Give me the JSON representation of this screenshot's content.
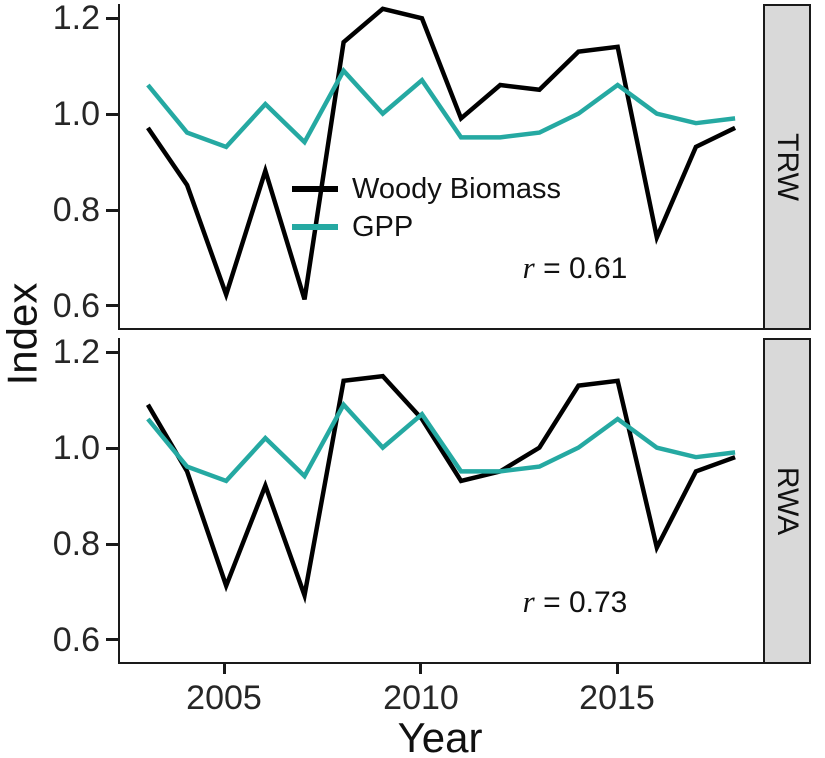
{
  "chart_data": {
    "type": "line",
    "xlabel": "Year",
    "ylabel": "Index",
    "x": [
      2003,
      2004,
      2005,
      2006,
      2007,
      2008,
      2009,
      2010,
      2011,
      2012,
      2013,
      2014,
      2015,
      2016,
      2017,
      2018
    ],
    "x_ticks": [
      2005,
      2010,
      2015
    ],
    "x_tick_labels": [
      "2005",
      "2010",
      "2015"
    ],
    "y_ticks": [
      1.2,
      1.0,
      0.8,
      0.6
    ],
    "y_tick_labels": [
      "1.2",
      "1.0",
      "0.8",
      "0.6"
    ],
    "ylim": [
      0.55,
      1.23
    ],
    "grid": "off",
    "legend_position": "inside-top-panel",
    "facet_strip_bg": "#d9d9d9",
    "legend": {
      "entries": [
        {
          "label": "Woody Biomass",
          "color": "#000000"
        },
        {
          "label": "GPP",
          "color": "#25a9a2"
        }
      ]
    },
    "panels": [
      {
        "facet_label": "TRW",
        "annotation": {
          "symbol": "r",
          "rest": " = 0.61"
        },
        "series": [
          {
            "name": "Woody Biomass",
            "color": "#000000",
            "values": [
              0.97,
              0.85,
              0.62,
              0.88,
              0.61,
              1.15,
              1.22,
              1.2,
              0.99,
              1.06,
              1.05,
              1.13,
              1.14,
              0.74,
              0.93,
              0.97
            ]
          },
          {
            "name": "GPP",
            "color": "#25a9a2",
            "values": [
              1.06,
              0.96,
              0.93,
              1.02,
              0.94,
              1.09,
              1.0,
              1.07,
              0.95,
              0.95,
              0.96,
              1.0,
              1.06,
              1.0,
              0.98,
              0.99
            ]
          }
        ]
      },
      {
        "facet_label": "RWA",
        "annotation": {
          "symbol": "r",
          "rest": " = 0.73"
        },
        "series": [
          {
            "name": "Woody Biomass",
            "color": "#000000",
            "values": [
              1.09,
              0.95,
              0.71,
              0.92,
              0.69,
              1.14,
              1.15,
              1.06,
              0.93,
              0.95,
              1.0,
              1.13,
              1.14,
              0.79,
              0.95,
              0.98
            ]
          },
          {
            "name": "GPP",
            "color": "#25a9a2",
            "values": [
              1.06,
              0.96,
              0.93,
              1.02,
              0.94,
              1.09,
              1.0,
              1.07,
              0.95,
              0.95,
              0.96,
              1.0,
              1.06,
              1.0,
              0.98,
              0.99
            ]
          }
        ]
      }
    ]
  }
}
